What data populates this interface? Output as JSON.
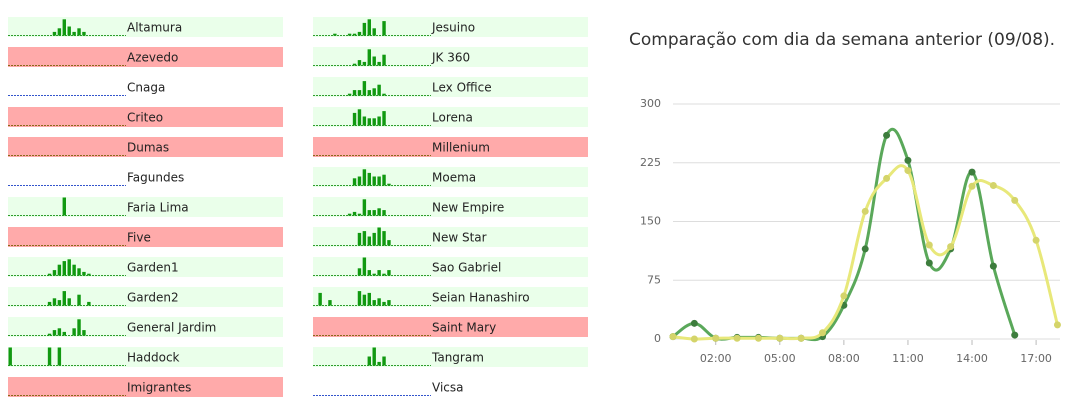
{
  "locations_spark_ylim": [
    0,
    10
  ],
  "locations": [
    {
      "name": "Altamura",
      "background": "#eaffea",
      "bars": [
        0,
        0,
        0,
        0,
        0,
        0,
        0,
        0,
        0,
        2,
        4,
        9,
        5,
        2,
        4,
        2,
        0,
        0,
        0,
        0,
        0,
        0,
        0,
        0
      ]
    },
    {
      "name": "Azevedo",
      "background": "#ffaaaa",
      "bars": [
        0,
        0,
        0,
        0,
        0,
        0,
        0,
        0,
        0,
        0,
        0,
        0,
        0,
        0,
        0,
        0,
        0,
        0,
        0,
        0,
        0,
        0,
        0,
        0
      ]
    },
    {
      "name": "Cnaga",
      "background": "#ffffff",
      "bars": [
        0,
        0,
        0,
        0,
        0,
        0,
        0,
        0,
        0,
        0,
        0,
        0,
        0,
        0,
        0,
        0,
        0,
        0,
        0,
        0,
        0,
        0,
        0,
        0
      ]
    },
    {
      "name": "Criteo",
      "background": "#ffaaaa",
      "bars": [
        0,
        0,
        0,
        0,
        0,
        0,
        0,
        0,
        0,
        0,
        0,
        0,
        0,
        0,
        0,
        0,
        0,
        0,
        0,
        0,
        0,
        0,
        0,
        0
      ]
    },
    {
      "name": "Dumas",
      "background": "#ffaaaa",
      "bars": [
        0,
        0,
        0,
        0,
        0,
        0,
        0,
        0,
        0,
        0,
        0,
        0,
        0,
        0,
        0,
        0,
        0,
        0,
        0,
        0,
        0,
        0,
        0,
        0
      ]
    },
    {
      "name": "Fagundes",
      "background": "#ffffff",
      "bars": [
        0,
        0,
        0,
        0,
        0,
        0,
        0,
        0,
        0,
        0,
        0,
        0,
        0,
        0,
        0,
        0,
        0,
        0,
        0,
        0,
        0,
        0,
        0,
        0
      ]
    },
    {
      "name": "Faria Lima",
      "background": "#eaffea",
      "bars": [
        0,
        0,
        0,
        0,
        0,
        0,
        0,
        0,
        0,
        0,
        0,
        10,
        0,
        0,
        0,
        0,
        0,
        0,
        0,
        0,
        0,
        0,
        0,
        0
      ]
    },
    {
      "name": "Five",
      "background": "#ffaaaa",
      "bars": [
        0,
        0,
        0,
        0,
        0,
        0,
        0,
        0,
        0,
        0,
        0,
        0,
        0,
        0,
        0,
        0,
        0,
        0,
        0,
        0,
        0,
        0,
        0,
        0
      ]
    },
    {
      "name": "Garden1",
      "background": "#eaffea",
      "bars": [
        0,
        0,
        0,
        0,
        0,
        0,
        0,
        0,
        1,
        3,
        6,
        8,
        9,
        6,
        4,
        2,
        1,
        0,
        0,
        0,
        0,
        0,
        0,
        0
      ]
    },
    {
      "name": "Garden2",
      "background": "#eaffea",
      "bars": [
        0,
        0,
        0,
        0,
        0,
        0,
        0,
        0,
        2,
        4,
        3,
        8,
        4,
        0,
        6,
        0,
        2,
        0,
        0,
        0,
        0,
        0,
        0,
        0
      ]
    },
    {
      "name": "General Jardim",
      "background": "#eaffea",
      "bars": [
        0,
        0,
        0,
        0,
        0,
        0,
        0,
        0,
        1,
        3,
        4,
        2,
        0,
        4,
        9,
        3,
        0,
        0,
        0,
        0,
        0,
        0,
        0,
        0
      ]
    },
    {
      "name": "Haddock",
      "background": "#eaffea",
      "bars": [
        10,
        0,
        0,
        0,
        0,
        0,
        0,
        0,
        10,
        0,
        10,
        0,
        0,
        0,
        0,
        0,
        0,
        0,
        0,
        0,
        0,
        0,
        0,
        0
      ]
    },
    {
      "name": "Imigrantes",
      "background": "#ffaaaa",
      "bars": [
        0,
        0,
        0,
        0,
        0,
        0,
        0,
        0,
        0,
        0,
        0,
        0,
        0,
        0,
        0,
        0,
        0,
        0,
        0,
        0,
        0,
        0,
        0,
        0
      ]
    },
    {
      "name": "Jesuino",
      "background": "#eaffea",
      "bars": [
        0,
        0,
        0,
        0,
        1,
        0,
        0,
        1,
        1,
        2,
        7,
        9,
        4,
        0,
        8,
        0,
        0,
        0,
        0,
        0,
        0,
        0,
        0,
        0
      ]
    },
    {
      "name": "JK 360",
      "background": "#eaffea",
      "bars": [
        0,
        0,
        0,
        0,
        0,
        0,
        0,
        0,
        1,
        3,
        2,
        9,
        5,
        2,
        6,
        0,
        0,
        0,
        0,
        0,
        0,
        0,
        0,
        0
      ]
    },
    {
      "name": "Lex Office",
      "background": "#eaffea",
      "bars": [
        0,
        0,
        0,
        0,
        0,
        0,
        0,
        1,
        3,
        3,
        8,
        3,
        4,
        6,
        1,
        0,
        0,
        0,
        0,
        0,
        0,
        0,
        0,
        0
      ]
    },
    {
      "name": "Lorena",
      "background": "#eaffea",
      "bars": [
        0,
        0,
        0,
        0,
        0,
        0,
        0,
        0,
        7,
        9,
        5,
        4,
        4,
        5,
        8,
        0,
        0,
        0,
        0,
        0,
        0,
        0,
        0,
        0
      ]
    },
    {
      "name": "Millenium",
      "background": "#ffaaaa",
      "bars": [
        0,
        0,
        0,
        0,
        0,
        0,
        0,
        0,
        0,
        0,
        0,
        0,
        0,
        0,
        0,
        0,
        0,
        0,
        0,
        0,
        0,
        0,
        0,
        0
      ]
    },
    {
      "name": "Moema",
      "background": "#eaffea",
      "bars": [
        0,
        0,
        0,
        0,
        0,
        0,
        0,
        0,
        4,
        5,
        9,
        7,
        5,
        5,
        6,
        1,
        0,
        0,
        0,
        0,
        0,
        0,
        0,
        0
      ]
    },
    {
      "name": "New Empire",
      "background": "#eaffea",
      "bars": [
        0,
        0,
        0,
        0,
        0,
        0,
        0,
        1,
        2,
        1,
        9,
        3,
        3,
        4,
        3,
        0,
        0,
        0,
        0,
        0,
        0,
        0,
        0,
        0
      ]
    },
    {
      "name": "New Star",
      "background": "#eaffea",
      "bars": [
        0,
        0,
        0,
        0,
        0,
        0,
        0,
        0,
        0,
        7,
        8,
        5,
        7,
        10,
        8,
        3,
        0,
        0,
        0,
        0,
        0,
        0,
        0,
        0
      ]
    },
    {
      "name": "Sao Gabriel",
      "background": "#eaffea",
      "bars": [
        0,
        0,
        0,
        0,
        0,
        0,
        0,
        0,
        0,
        4,
        10,
        3,
        1,
        3,
        1,
        3,
        0,
        0,
        0,
        0,
        0,
        0,
        0,
        0
      ]
    },
    {
      "name": "Seian Hanashiro",
      "background": "#eaffea",
      "bars": [
        0,
        7,
        0,
        3,
        0,
        0,
        0,
        0,
        0,
        8,
        6,
        7,
        3,
        4,
        2,
        3,
        0,
        0,
        0,
        0,
        0,
        0,
        0,
        0
      ]
    },
    {
      "name": "Saint Mary",
      "background": "#ffaaaa",
      "bars": [
        0,
        0,
        0,
        0,
        0,
        0,
        0,
        0,
        0,
        0,
        0,
        0,
        0,
        0,
        0,
        0,
        0,
        0,
        0,
        0,
        0,
        0,
        0,
        0
      ]
    },
    {
      "name": "Tangram",
      "background": "#eaffea",
      "bars": [
        0,
        0,
        0,
        0,
        0,
        0,
        0,
        0,
        0,
        0,
        0,
        5,
        10,
        2,
        5,
        0,
        0,
        0,
        0,
        0,
        0,
        0,
        0,
        0
      ]
    },
    {
      "name": "Vicsa",
      "background": "#ffffff",
      "bars": [
        0,
        0,
        0,
        0,
        0,
        0,
        0,
        0,
        0,
        0,
        0,
        0,
        0,
        0,
        0,
        0,
        0,
        0,
        0,
        0,
        0,
        0,
        0,
        0
      ]
    }
  ],
  "chart_data": {
    "type": "line",
    "title": "Comparação com dia da semana anterior (09/08).",
    "x": [
      0,
      1,
      2,
      3,
      4,
      5,
      6,
      7,
      8,
      9,
      10,
      11,
      12,
      13,
      14,
      15,
      16,
      17,
      18
    ],
    "series": [
      {
        "color": "#5aa85a",
        "point_color": "#3d7d3d",
        "values": [
          3,
          20,
          1,
          2,
          2,
          1,
          1,
          3,
          43,
          115,
          260,
          228,
          97,
          115,
          213,
          93,
          5,
          null,
          null
        ]
      },
      {
        "color": "#e8e87a",
        "point_color": "#d4d46a",
        "values": [
          3,
          0,
          1,
          1,
          1,
          1,
          1,
          8,
          55,
          163,
          205,
          215,
          120,
          118,
          195,
          196,
          177,
          126,
          18
        ]
      }
    ],
    "xlim": [
      0,
      18.4
    ],
    "ylim": [
      0,
      300
    ],
    "yticks": [
      0,
      75,
      150,
      225,
      300
    ],
    "xticks": [
      {
        "value": 2,
        "label": "02:00"
      },
      {
        "value": 5,
        "label": "05:00"
      },
      {
        "value": 8,
        "label": "08:00"
      },
      {
        "value": 11,
        "label": "11:00"
      },
      {
        "value": 14,
        "label": "14:00"
      },
      {
        "value": 17,
        "label": "17:00"
      }
    ],
    "grid": true
  }
}
